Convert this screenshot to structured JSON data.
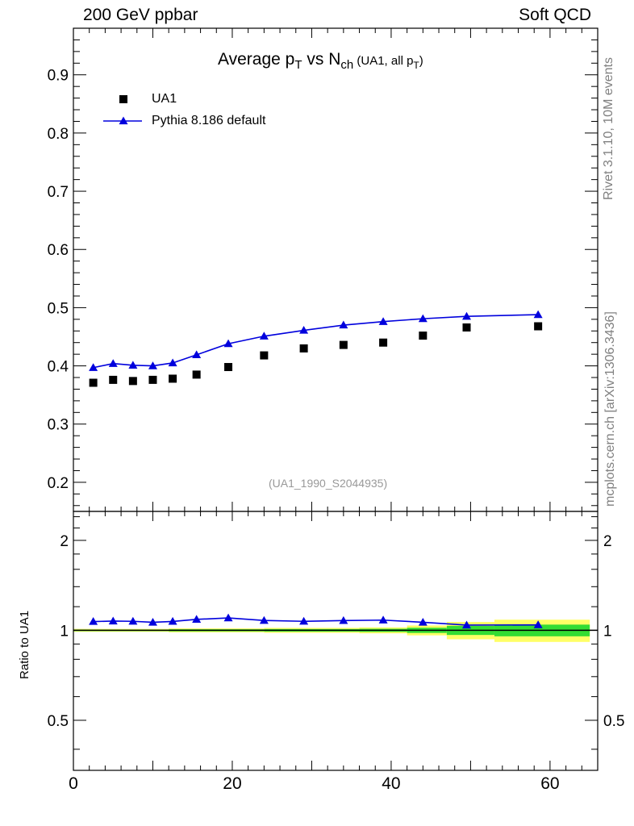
{
  "header": {
    "left": "200 GeV ppbar",
    "right": "Soft QCD"
  },
  "side_labels": {
    "rivet": "Rivet 3.1.10,  10M events",
    "mcplots": "mcplots.cern.ch [arXiv:1306.3436]"
  },
  "title": {
    "main": "Average p",
    "sub1": "T",
    "vs": " vs N",
    "sub2": "ch",
    "tail_open": " (UA1, all p",
    "sub3": "T",
    "tail_close": ")"
  },
  "analysis_id": "(UA1_1990_S2044935)",
  "legend": {
    "data_label": "UA1",
    "mc_label": "Pythia 8.186 default"
  },
  "ratio_ylabel": "Ratio to UA1",
  "colors": {
    "data": "#000000",
    "mc": "#0000dd",
    "band_green": "#33dd33",
    "band_yellow": "#ffff66"
  },
  "chart_data": [
    {
      "type": "scatter",
      "title": "Average pT vs Nch (UA1, all pT)",
      "xlim": [
        0,
        66
      ],
      "ylim": [
        0.15,
        0.98
      ],
      "yticks": [
        0.2,
        0.3,
        0.4,
        0.5,
        0.6,
        0.7,
        0.8,
        0.9
      ],
      "series": [
        {
          "name": "UA1",
          "marker": "square",
          "x": [
            2.5,
            5,
            7.5,
            10,
            12.5,
            15.5,
            19.5,
            24,
            29,
            34,
            39,
            44,
            49.5,
            58.5
          ],
          "y": [
            0.371,
            0.376,
            0.374,
            0.376,
            0.378,
            0.385,
            0.398,
            0.418,
            0.43,
            0.436,
            0.44,
            0.452,
            0.466,
            0.468
          ]
        },
        {
          "name": "Pythia 8.186 default",
          "marker": "triangle",
          "x": [
            2.5,
            5,
            7.5,
            10,
            12.5,
            15.5,
            19.5,
            24,
            29,
            34,
            39,
            44,
            49.5,
            58.5
          ],
          "y": [
            0.397,
            0.404,
            0.401,
            0.4,
            0.405,
            0.419,
            0.438,
            0.451,
            0.461,
            0.47,
            0.476,
            0.481,
            0.485,
            0.488
          ]
        }
      ]
    },
    {
      "type": "line",
      "ylabel": "Ratio to UA1",
      "xlim": [
        0,
        66
      ],
      "ylim": [
        0.34,
        2.5
      ],
      "y_scale": "log",
      "yticks": [
        0.5,
        1,
        2
      ],
      "xticks": [
        0,
        20,
        40,
        60
      ],
      "series": [
        {
          "name": "Pythia 8.186 default",
          "x": [
            2.5,
            5,
            7.5,
            10,
            12.5,
            15.5,
            19.5,
            24,
            29,
            34,
            39,
            44,
            49.5,
            58.5
          ],
          "y": [
            1.07,
            1.074,
            1.072,
            1.064,
            1.071,
            1.088,
            1.1,
            1.079,
            1.072,
            1.078,
            1.082,
            1.064,
            1.041,
            1.043
          ]
        }
      ]
    }
  ]
}
